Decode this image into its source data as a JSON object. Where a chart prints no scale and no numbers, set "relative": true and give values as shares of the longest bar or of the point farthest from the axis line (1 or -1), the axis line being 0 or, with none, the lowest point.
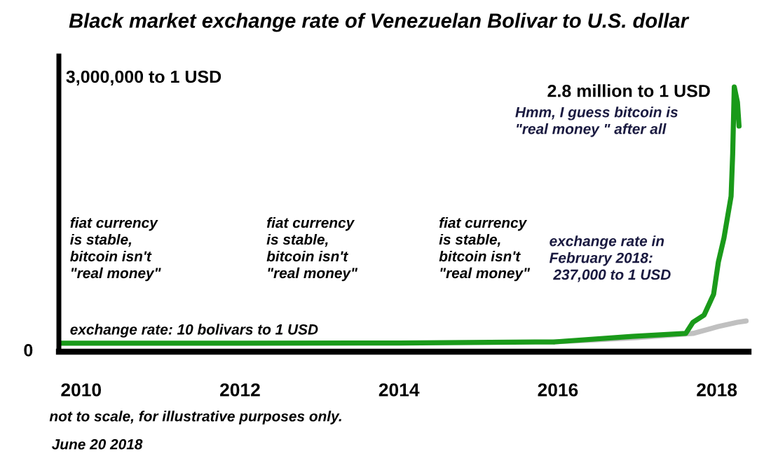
{
  "chart_data": {
    "type": "line",
    "title": "Black market exchange rate of Venezuelan Bolivar to U.S. dollar",
    "xlim": [
      2009.72,
      2018.4
    ],
    "xticks": [
      2010,
      2012,
      2014,
      2016,
      2018
    ],
    "relative": true,
    "tick_labels": "x",
    "grid": false,
    "marker": "none",
    "line_style": "solid",
    "series": [
      {
        "color": "#c0c0c0",
        "x": [
          2015.96,
          2016.38,
          2017.0,
          2017.7,
          2018.02,
          2018.26,
          2018.37
        ],
        "values": [
          0.037,
          0.043,
          0.053,
          0.069,
          0.095,
          0.111,
          0.116
        ]
      },
      {
        "color": "#1a9a1a",
        "x": [
          2009.72,
          2012.0,
          2014.0,
          2015.96,
          2016.94,
          2017.61,
          2017.7,
          2017.84,
          2017.96,
          2018.02,
          2018.09,
          2018.18,
          2018.2,
          2018.22,
          2018.26,
          2018.28
        ],
        "values": [
          0.032,
          0.032,
          0.033,
          0.037,
          0.058,
          0.069,
          0.111,
          0.138,
          0.217,
          0.339,
          0.429,
          0.587,
          0.746,
          1,
          0.942,
          0.852
        ]
      }
    ],
    "annotations": [
      "fiat currency\nis stable,\nbitcoin isn't\n\"real money\"",
      "fiat currency\nis stable,\nbitcoin isn't\n\"real money\"",
      "fiat currency\nis stable,\nbitcoin isn't\n\"real money\"",
      "exchange rate: 10 bolivars to 1 USD",
      "exchange rate in\nFebruary 2018:\n 237,000 to 1 USD",
      "2.8 million to 1 USD",
      "Hmm, I guess bitcoin is\n\"real money \" after all",
      "not to scale, for illustrative purposes only.",
      "June 20 2018",
      "3,000,000 to 1 USD",
      "0"
    ]
  }
}
